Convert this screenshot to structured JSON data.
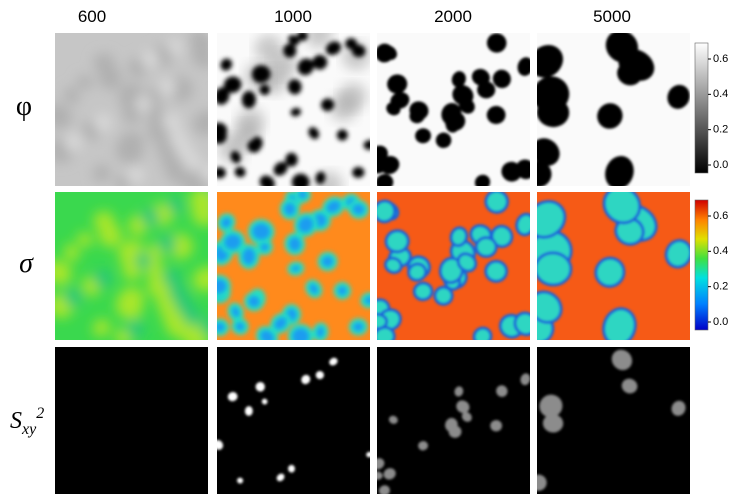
{
  "columns": [
    "600",
    "1000",
    "2000",
    "5000"
  ],
  "rows": [
    {
      "label": "φ"
    },
    {
      "label": "σ"
    },
    {
      "label": {
        "base": "S",
        "sub": "xy",
        "sup": "2"
      }
    }
  ],
  "colorbars": [
    {
      "ticks": [
        "0.6",
        "0.4",
        "0.2",
        "0.0"
      ]
    },
    {
      "ticks": [
        "0.6",
        "0.4",
        "0.2",
        "0.0"
      ]
    }
  ]
}
